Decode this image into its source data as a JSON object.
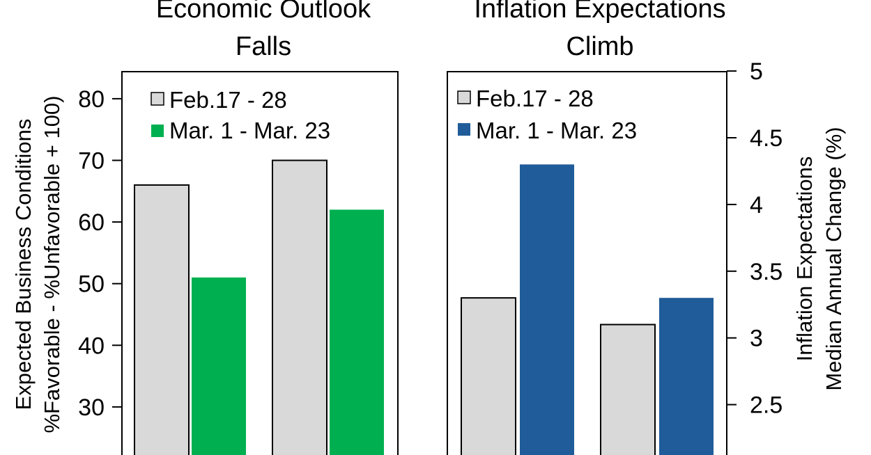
{
  "chart_data": [
    {
      "type": "bar",
      "title": [
        "Economic Outlook",
        "Falls"
      ],
      "ylabel": [
        "Expected Business Conditions",
        "%Favorable - %Unfavorable + 100)"
      ],
      "y_axis_side": "left",
      "ylim": [
        20,
        85
      ],
      "yticks": [
        "30",
        "40",
        "50",
        "60",
        "70",
        "80"
      ],
      "categories": [
        "",
        ""
      ],
      "series": [
        {
          "name": "Feb.17 - 28",
          "color": "#d9d9d9",
          "values": [
            66,
            70
          ]
        },
        {
          "name": "Mar. 1 - Mar. 23",
          "color": "#00b050",
          "values": [
            51,
            62
          ]
        }
      ],
      "legend_position": "top-left",
      "grid": false
    },
    {
      "type": "bar",
      "title": [
        "Inflation Expectations",
        "Climb"
      ],
      "ylabel": [
        "Inflation Expectations",
        "Median Annual Change (%)"
      ],
      "y_axis_side": "right",
      "ylim": [
        2.2,
        5
      ],
      "yticks": [
        "2.5",
        "3",
        "3.5",
        "4",
        "4.5",
        "5"
      ],
      "categories": [
        "",
        ""
      ],
      "series": [
        {
          "name": "Feb.17 - 28",
          "color": "#d9d9d9",
          "values": [
            3.3,
            3.1
          ]
        },
        {
          "name": "Mar. 1 - Mar. 23",
          "color": "#1f5c99",
          "values": [
            4.3,
            3.3
          ]
        }
      ],
      "legend_position": "top-left",
      "grid": false
    }
  ]
}
